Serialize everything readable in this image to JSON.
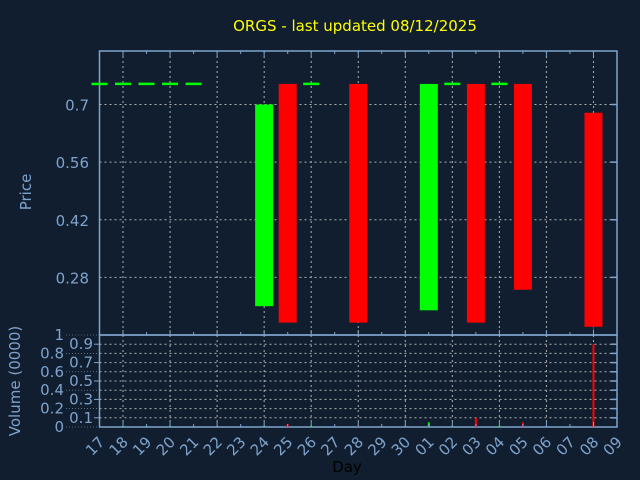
{
  "chart_data": [
    {
      "type": "candlestick",
      "title": "ORGS - last updated 08/12/2025",
      "ylabel": "Price",
      "xlabel": "Day",
      "ylim": [
        0.14,
        0.83
      ],
      "yticks": [
        "0.28",
        "0.42",
        "0.56",
        "0.7"
      ],
      "ytick_values": [
        0.28,
        0.42,
        0.56,
        0.7
      ],
      "grid": true,
      "categories": [
        "17",
        "18",
        "19",
        "20",
        "21",
        "22",
        "23",
        "24",
        "25",
        "26",
        "27",
        "28",
        "29",
        "30",
        "01",
        "02",
        "03",
        "04",
        "05",
        "06",
        "07",
        "08",
        "09"
      ],
      "candles": [
        {
          "day": "17",
          "open": 0.75,
          "close": 0.75,
          "color": "#00ff00"
        },
        {
          "day": "18",
          "open": 0.75,
          "close": 0.75,
          "color": "#00ff00"
        },
        {
          "day": "19",
          "open": 0.75,
          "close": 0.75,
          "color": "#00ff00"
        },
        {
          "day": "20",
          "open": 0.75,
          "close": 0.75,
          "color": "#00ff00"
        },
        {
          "day": "21",
          "open": 0.75,
          "close": 0.75,
          "color": "#00ff00"
        },
        {
          "day": "24",
          "open": 0.21,
          "close": 0.7,
          "color": "#00ff00"
        },
        {
          "day": "25",
          "open": 0.75,
          "close": 0.17,
          "color": "#ff0000"
        },
        {
          "day": "26",
          "open": 0.75,
          "close": 0.75,
          "color": "#00ff00"
        },
        {
          "day": "28",
          "open": 0.75,
          "close": 0.17,
          "color": "#ff0000"
        },
        {
          "day": "01",
          "open": 0.2,
          "close": 0.75,
          "color": "#00ff00"
        },
        {
          "day": "02",
          "open": 0.75,
          "close": 0.75,
          "color": "#00ff00"
        },
        {
          "day": "03",
          "open": 0.75,
          "close": 0.17,
          "color": "#ff0000"
        },
        {
          "day": "04",
          "open": 0.75,
          "close": 0.75,
          "color": "#00ff00"
        },
        {
          "day": "05",
          "open": 0.75,
          "close": 0.25,
          "color": "#ff0000"
        },
        {
          "day": "08",
          "open": 0.68,
          "close": 0.16,
          "low": 0.15,
          "color": "#ff0000"
        }
      ]
    },
    {
      "type": "bar",
      "ylabel": "Volume (0000)",
      "ylim": [
        0,
        1
      ],
      "yticks": [
        "0",
        "0.1",
        "0.2",
        "0.3",
        "0.4",
        "0.5",
        "0.6",
        "0.7",
        "0.8",
        "0.9",
        "1"
      ],
      "grid": true,
      "bars": [
        {
          "day": "18",
          "value": 0.01,
          "color": "#00ff00"
        },
        {
          "day": "19",
          "value": 0.01,
          "color": "#00ff00"
        },
        {
          "day": "20",
          "value": 0.01,
          "color": "#00ff00"
        },
        {
          "day": "24",
          "value": 0.01,
          "color": "#00ff00"
        },
        {
          "day": "25",
          "value": 0.03,
          "color": "#ff0000"
        },
        {
          "day": "26",
          "value": 0.01,
          "color": "#00ff00"
        },
        {
          "day": "28",
          "value": 0.02,
          "color": "#ff0000"
        },
        {
          "day": "01",
          "value": 0.05,
          "color": "#00ff00"
        },
        {
          "day": "02",
          "value": 0.01,
          "color": "#00ff00"
        },
        {
          "day": "03",
          "value": 0.1,
          "color": "#ff0000"
        },
        {
          "day": "04",
          "value": 0.01,
          "color": "#00ff00"
        },
        {
          "day": "05",
          "value": 0.05,
          "color": "#ff0000"
        },
        {
          "day": "08",
          "value": 0.9,
          "color": "#ff0000"
        }
      ]
    }
  ],
  "colors": {
    "background": "#101e2f",
    "axis": "#7fa3cc",
    "grid": "#b0b0b0",
    "title": "#ffff00",
    "up": "#00ff00",
    "down": "#ff0000"
  }
}
